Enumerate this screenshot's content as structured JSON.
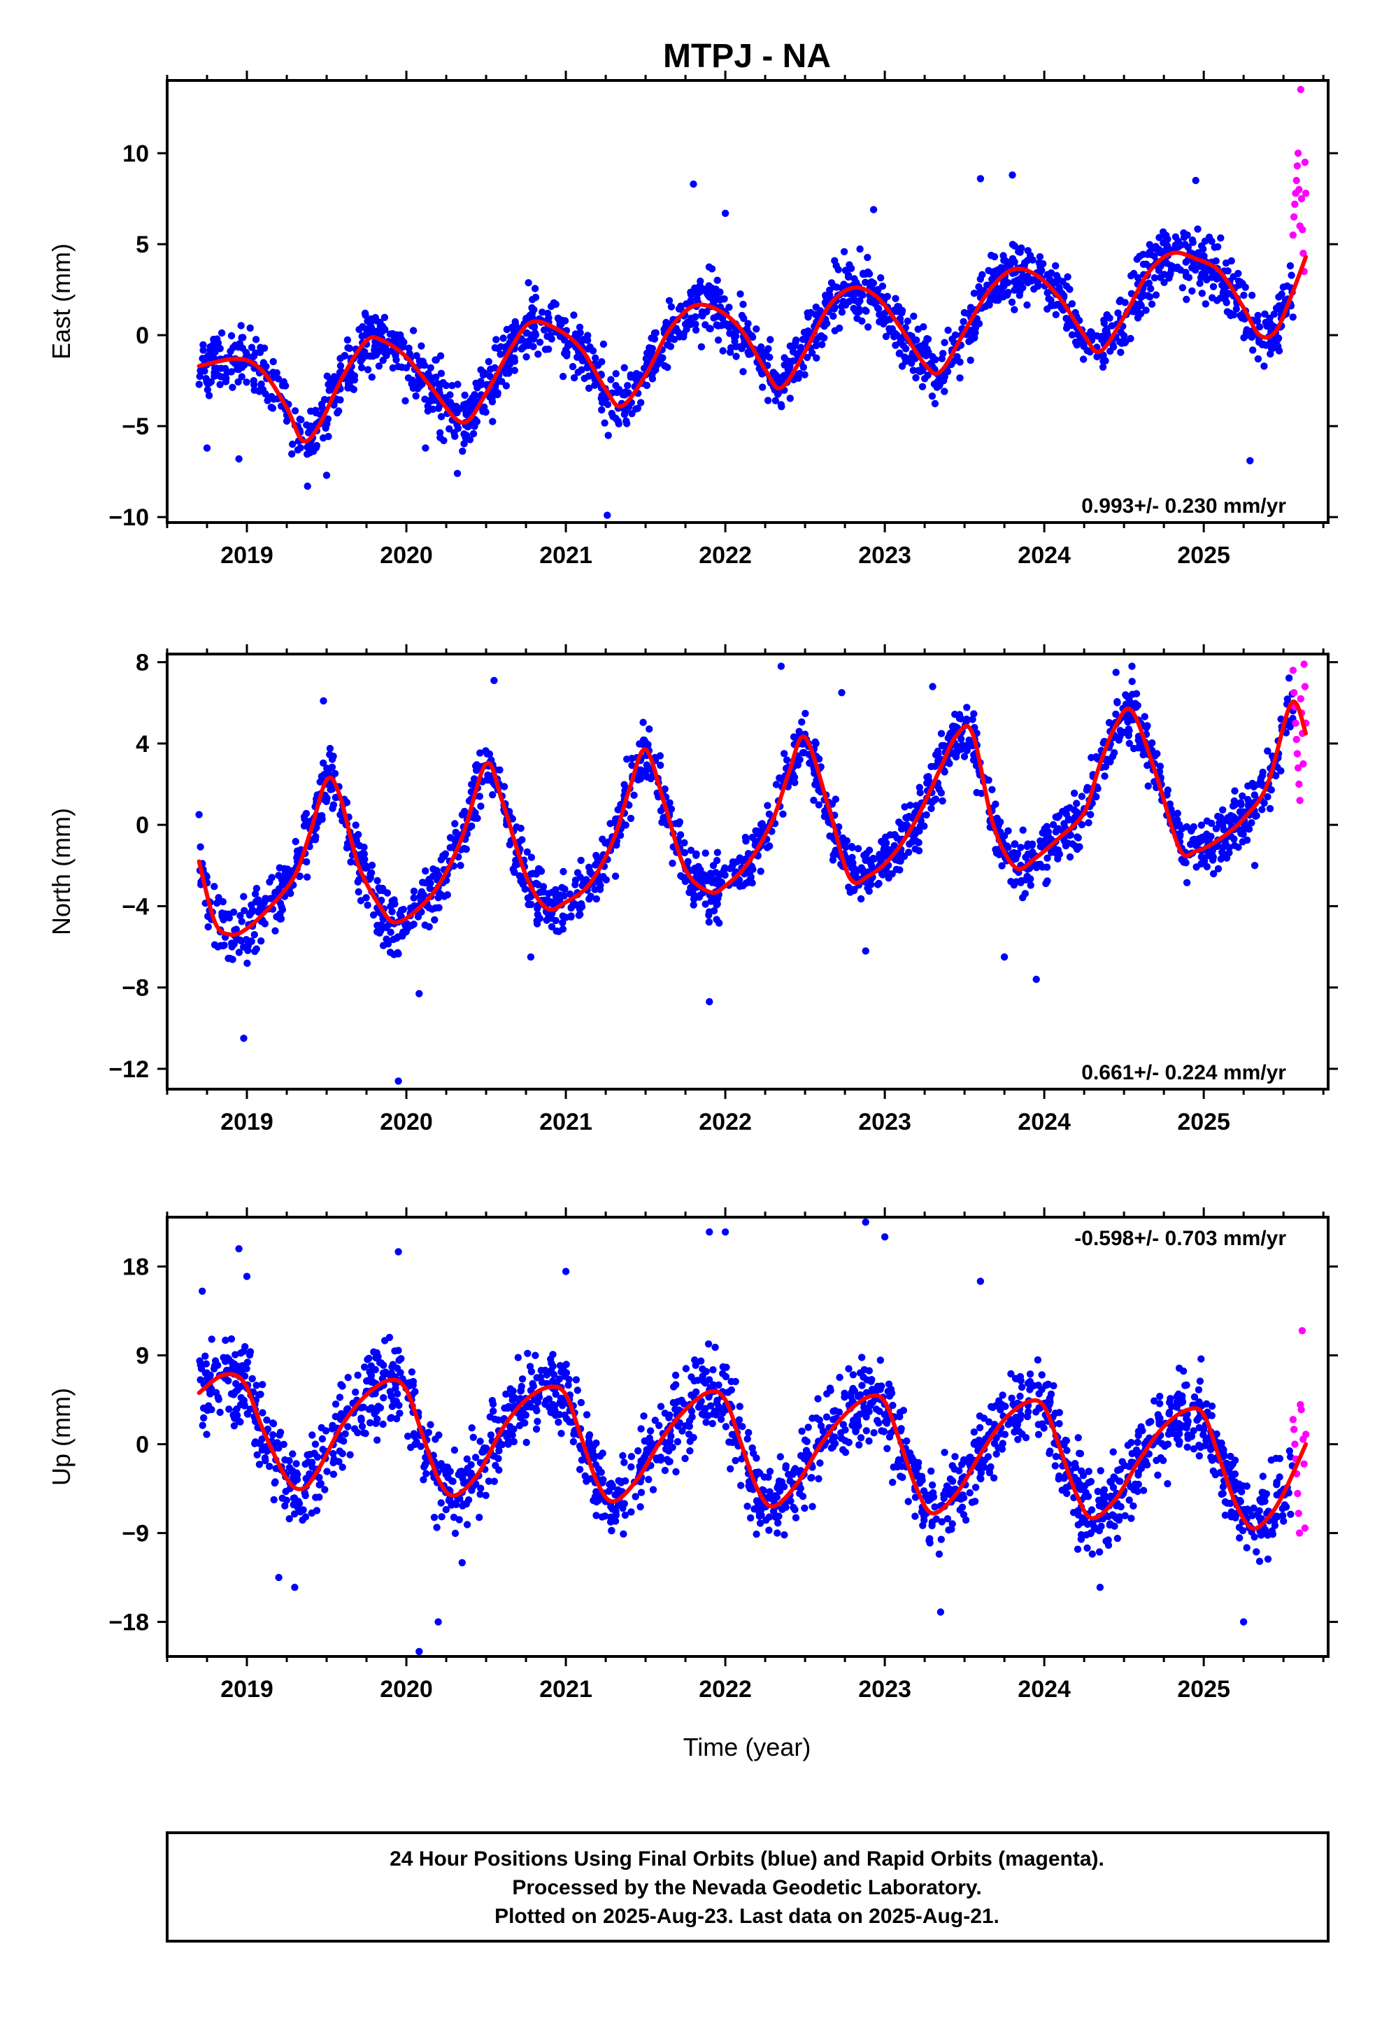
{
  "title": "MTPJ - NA",
  "footer": {
    "line1": "24 Hour Positions Using Final Orbits (blue) and Rapid Orbits (magenta).",
    "line2": "Processed by the Nevada Geodetic Laboratory.",
    "line3": "Plotted on 2025-Aug-23. Last data on 2025-Aug-21."
  },
  "xlabel": "Time (year)",
  "colors": {
    "final": "#0000ff",
    "rapid": "#ff00ff",
    "model": "#ff0000"
  },
  "chart_data": [
    {
      "type": "scatter",
      "ylabel": "East (mm)",
      "rate": "0.993+/- 0.230 mm/yr",
      "rate_position": "bottom-right",
      "xlim": [
        2018.5,
        2025.78
      ],
      "ylim": [
        -10.3,
        14.0
      ],
      "xticks": [
        2019,
        2020,
        2021,
        2022,
        2023,
        2024,
        2025
      ],
      "xtick_labels": [
        "2019",
        "2020",
        "2021",
        "2022",
        "2023",
        "2024",
        "2025"
      ],
      "yticks": [
        -10,
        -5,
        0,
        5,
        10
      ],
      "ytick_labels": [
        "−10",
        "−5",
        "0",
        "5",
        "10"
      ],
      "trend": {
        "mean": -0.8,
        "slope": 0.993,
        "t0": 2022
      },
      "model": {
        "x": [
          2018.7,
          2018.95,
          2019.1,
          2019.25,
          2019.35,
          2019.45,
          2019.6,
          2019.75,
          2019.85,
          2020.0,
          2020.15,
          2020.35,
          2020.5,
          2020.65,
          2020.78,
          2020.95,
          2021.1,
          2021.25,
          2021.35,
          2021.5,
          2021.65,
          2021.8,
          2021.95,
          2022.1,
          2022.25,
          2022.35,
          2022.5,
          2022.65,
          2022.8,
          2022.95,
          2023.1,
          2023.25,
          2023.35,
          2023.5,
          2023.65,
          2023.8,
          2023.95,
          2024.1,
          2024.25,
          2024.35,
          2024.5,
          2024.65,
          2024.8,
          2024.95,
          2025.1,
          2025.25,
          2025.35,
          2025.45,
          2025.55,
          2025.64
        ],
        "y": [
          -1.7,
          -1.3,
          -2.0,
          -4.0,
          -5.8,
          -5.0,
          -2.3,
          -0.3,
          -0.3,
          -1.2,
          -2.8,
          -4.8,
          -3.2,
          -0.8,
          0.7,
          0.3,
          -0.8,
          -3.0,
          -3.9,
          -2.2,
          0.3,
          1.6,
          1.4,
          0.3,
          -1.9,
          -2.9,
          -0.9,
          1.6,
          2.6,
          2.1,
          0.4,
          -1.6,
          -2.0,
          0.2,
          2.4,
          3.6,
          3.3,
          2.0,
          0.0,
          -0.9,
          1.0,
          3.4,
          4.5,
          4.2,
          3.5,
          1.5,
          0.0,
          0.2,
          2.2,
          4.3
        ]
      },
      "final_points": {
        "x_start": 2018.7,
        "x_end": 2025.56,
        "count": 1900,
        "noise_sd": 1.2,
        "color": "blue"
      },
      "rapid_points": {
        "x_start": 2025.56,
        "x_end": 2025.64,
        "y": [
          5.5,
          6.5,
          7.2,
          7.8,
          8.5,
          9.3,
          10.0,
          8.0,
          6.0,
          13.5,
          7.5,
          5.8,
          4.5,
          3.5,
          9.5,
          7.8
        ],
        "color": "magenta"
      },
      "outliers": {
        "x": [
          2018.75,
          2018.95,
          2019.38,
          2019.5,
          2020.12,
          2020.32,
          2021.26,
          2021.8,
          2022.0,
          2022.93,
          2023.6,
          2023.8,
          2024.95,
          2025.29
        ],
        "y": [
          -6.2,
          -6.8,
          -8.3,
          -7.7,
          -6.2,
          -7.6,
          -9.9,
          8.3,
          6.7,
          6.9,
          8.6,
          8.8,
          8.5,
          -6.9
        ]
      }
    },
    {
      "type": "scatter",
      "ylabel": "North (mm)",
      "rate": "0.661+/- 0.224 mm/yr",
      "rate_position": "bottom-right",
      "xlim": [
        2018.5,
        2025.78
      ],
      "ylim": [
        -13.0,
        8.4
      ],
      "xticks": [
        2019,
        2020,
        2021,
        2022,
        2023,
        2024,
        2025
      ],
      "xtick_labels": [
        "2019",
        "2020",
        "2021",
        "2022",
        "2023",
        "2024",
        "2025"
      ],
      "yticks": [
        -12,
        -8,
        -4,
        0,
        4,
        8
      ],
      "ytick_labels": [
        "−12",
        "−8",
        "−4",
        "0",
        "4",
        "8"
      ],
      "trend": {
        "mean": 0.0,
        "slope": 0.661,
        "t0": 2022
      },
      "model": {
        "x": [
          2018.7,
          2018.8,
          2018.9,
          2019.0,
          2019.15,
          2019.3,
          2019.4,
          2019.5,
          2019.58,
          2019.7,
          2019.85,
          2019.93,
          2020.05,
          2020.2,
          2020.35,
          2020.5,
          2020.6,
          2020.75,
          2020.88,
          2021.0,
          2021.15,
          2021.3,
          2021.4,
          2021.5,
          2021.62,
          2021.75,
          2021.9,
          2022.0,
          2022.15,
          2022.3,
          2022.4,
          2022.5,
          2022.65,
          2022.78,
          2022.9,
          2023.05,
          2023.2,
          2023.35,
          2023.45,
          2023.55,
          2023.68,
          2023.82,
          2023.95,
          2024.1,
          2024.25,
          2024.35,
          2024.45,
          2024.55,
          2024.7,
          2024.85,
          2024.95,
          2025.1,
          2025.25,
          2025.4,
          2025.55,
          2025.64
        ],
        "y": [
          -1.8,
          -4.8,
          -5.4,
          -5.1,
          -4.0,
          -2.5,
          -0.3,
          2.2,
          1.5,
          -2.0,
          -4.2,
          -4.8,
          -4.3,
          -3.0,
          -0.6,
          3.0,
          1.2,
          -2.5,
          -4.1,
          -3.8,
          -2.9,
          -0.7,
          1.8,
          3.7,
          1.0,
          -2.2,
          -3.3,
          -3.0,
          -1.8,
          0.3,
          2.6,
          4.3,
          0.8,
          -2.6,
          -2.5,
          -1.5,
          0.3,
          2.8,
          4.4,
          4.5,
          0.0,
          -2.1,
          -1.6,
          -0.6,
          0.6,
          3.0,
          4.9,
          5.6,
          2.5,
          -1.2,
          -1.3,
          -0.7,
          0.3,
          2.0,
          6.0,
          4.5
        ]
      },
      "final_points": {
        "x_start": 2018.7,
        "x_end": 2025.56,
        "count": 1900,
        "noise_sd": 1.0,
        "color": "blue"
      },
      "rapid_points": {
        "x_start": 2025.56,
        "x_end": 2025.64,
        "y": [
          7.6,
          6.5,
          5.8,
          5.0,
          4.2,
          3.5,
          2.8,
          2.0,
          1.2,
          6.2,
          5.5,
          4.5,
          3.0,
          7.9,
          6.8,
          5.0
        ],
        "color": "magenta"
      },
      "outliers": {
        "x": [
          2018.7,
          2018.98,
          2019.48,
          2019.95,
          2020.08,
          2020.55,
          2020.78,
          2021.9,
          2022.35,
          2022.73,
          2022.88,
          2023.3,
          2023.75,
          2023.95,
          2024.45,
          2024.55,
          2025.32
        ],
        "y": [
          0.5,
          -10.5,
          6.1,
          -12.6,
          -8.3,
          7.1,
          -6.5,
          -8.7,
          7.8,
          6.5,
          -6.2,
          6.8,
          -6.5,
          -7.6,
          7.5,
          7.8,
          -2.0
        ]
      }
    },
    {
      "type": "scatter",
      "ylabel": "Up (mm)",
      "rate": "-0.598+/- 0.703 mm/yr",
      "rate_position": "top-right",
      "xlim": [
        2018.5,
        2025.78
      ],
      "ylim": [
        -21.5,
        23.0
      ],
      "xticks": [
        2019,
        2020,
        2021,
        2022,
        2023,
        2024,
        2025
      ],
      "xtick_labels": [
        "2019",
        "2020",
        "2021",
        "2022",
        "2023",
        "2024",
        "2025"
      ],
      "yticks": [
        -18,
        -9,
        0,
        9,
        18
      ],
      "ytick_labels": [
        "−18",
        "−9",
        "0",
        "9",
        "18"
      ],
      "trend": {
        "mean": -0.5,
        "slope": -0.598,
        "t0": 2022
      },
      "model": {
        "x": [
          2018.7,
          2018.85,
          2018.98,
          2019.1,
          2019.25,
          2019.35,
          2019.45,
          2019.6,
          2019.75,
          2019.9,
          2020.0,
          2020.1,
          2020.2,
          2020.3,
          2020.45,
          2020.6,
          2020.75,
          2020.9,
          2021.0,
          2021.1,
          2021.2,
          2021.3,
          2021.45,
          2021.6,
          2021.75,
          2021.9,
          2022.0,
          2022.1,
          2022.2,
          2022.3,
          2022.45,
          2022.6,
          2022.75,
          2022.9,
          2023.0,
          2023.1,
          2023.2,
          2023.3,
          2023.45,
          2023.6,
          2023.75,
          2023.9,
          2024.0,
          2024.1,
          2024.2,
          2024.3,
          2024.45,
          2024.6,
          2024.75,
          2024.9,
          2025.0,
          2025.1,
          2025.2,
          2025.3,
          2025.4,
          2025.5,
          2025.64
        ],
        "y": [
          5.2,
          7.0,
          6.3,
          1.5,
          -3.5,
          -4.5,
          -2.5,
          2.0,
          5.0,
          6.5,
          5.5,
          1.0,
          -3.5,
          -5.2,
          -3.0,
          1.5,
          4.5,
          5.8,
          5.0,
          0.5,
          -4.0,
          -5.8,
          -3.5,
          0.5,
          3.5,
          5.3,
          4.5,
          0.0,
          -4.5,
          -6.3,
          -4.0,
          0.0,
          3.0,
          4.8,
          4.3,
          0.0,
          -4.5,
          -7.0,
          -5.0,
          -1.0,
          2.5,
          4.3,
          3.8,
          -0.5,
          -5.0,
          -7.5,
          -5.5,
          -1.5,
          1.8,
          3.5,
          3.0,
          -1.5,
          -6.0,
          -8.5,
          -7.5,
          -5.0,
          0.0
        ]
      },
      "final_points": {
        "x_start": 2018.7,
        "x_end": 2025.56,
        "count": 1900,
        "noise_sd": 3.0,
        "color": "blue"
      },
      "rapid_points": {
        "x_start": 2025.56,
        "x_end": 2025.64,
        "y": [
          2.5,
          1.5,
          0.0,
          -1.5,
          -3.0,
          -5.0,
          -7.0,
          -9.0,
          4.0,
          3.5,
          11.5,
          0.5,
          -2.0,
          -8.5,
          1.0
        ],
        "color": "magenta"
      },
      "outliers": {
        "x": [
          2018.72,
          2018.95,
          2019.0,
          2019.2,
          2019.3,
          2019.95,
          2020.08,
          2020.2,
          2020.35,
          2021.0,
          2021.9,
          2022.0,
          2022.88,
          2023.0,
          2023.35,
          2023.6,
          2024.35,
          2025.25
        ],
        "y": [
          15.5,
          19.8,
          17.0,
          -13.5,
          -14.5,
          19.5,
          -21.0,
          -18.0,
          -12.0,
          17.5,
          21.5,
          21.5,
          22.5,
          21.0,
          -17.0,
          16.5,
          -14.5,
          -18.0
        ]
      }
    }
  ]
}
